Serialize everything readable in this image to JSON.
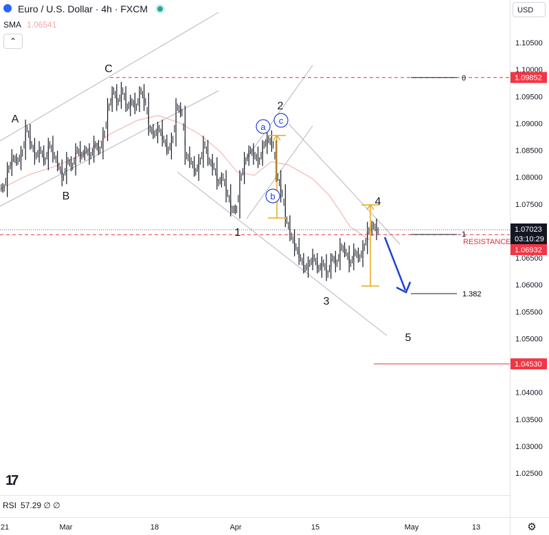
{
  "header": {
    "title": "Euro / U.S. Dollar · 4h · FXCM",
    "currency_button": "USD"
  },
  "indicators": {
    "sma_label": "SMA",
    "sma_value": "1.06541",
    "collapse_icon": "chevron-up-icon",
    "rsi_label": "RSI",
    "rsi_value": "57.29",
    "rsi_icons": "∅ ∅"
  },
  "price_axis": {
    "ticks": [
      "1.10500",
      "1.10000",
      "1.09500",
      "1.09000",
      "1.08500",
      "1.08000",
      "1.07500",
      "1.06500",
      "1.06000",
      "1.05500",
      "1.05000",
      "1.04000",
      "1.03500",
      "1.03000",
      "1.02500"
    ],
    "badges": {
      "level_0": {
        "text": "1.09852",
        "color": "#f23645"
      },
      "current": {
        "text": "1.07023",
        "color": "#131722"
      },
      "countdown": {
        "text": "03:10:29",
        "color": "#131722"
      },
      "resistance_level": {
        "text": "1.06932",
        "color": "#f23645"
      },
      "support_level": {
        "text": "1.04530",
        "color": "#f23645"
      }
    }
  },
  "time_axis": {
    "ticks": [
      "21",
      "Mar",
      "18",
      "Apr",
      "15",
      "May",
      "13"
    ]
  },
  "annotations": {
    "wave_labels": [
      "A",
      "B",
      "C",
      "1",
      "2",
      "3",
      "4",
      "5"
    ],
    "sub_wave_labels": [
      "a",
      "b",
      "c"
    ],
    "fib_labels": {
      "zero": "0",
      "one": "1",
      "ext": "1.382"
    },
    "resistance": "RESISTANCE"
  },
  "colors": {
    "candle": "#131722",
    "sma": "#f5b5b5",
    "channel": "#b2b5be",
    "dashed_red": "#e0303a",
    "fib_gold": "#e8a818",
    "arrow": "#1e3ed8",
    "subwave": "#1f3fd6"
  },
  "chart_data": {
    "type": "candlestick",
    "symbol": "EURUSD",
    "timeframe": "4h",
    "ylim": [
      1.021,
      1.108
    ],
    "x_ticks": [
      "21",
      "Mar",
      "18",
      "Apr",
      "15",
      "May",
      "13"
    ],
    "close_path": [
      1.078,
      1.0815,
      1.0835,
      1.083,
      1.0845,
      1.089,
      1.086,
      1.084,
      1.085,
      1.083,
      1.086,
      1.084,
      1.082,
      1.08,
      1.083,
      1.082,
      1.085,
      1.084,
      1.085,
      1.084,
      1.086,
      1.085,
      1.088,
      1.093,
      1.096,
      1.094,
      1.096,
      1.093,
      1.094,
      1.093,
      1.096,
      1.094,
      1.089,
      1.088,
      1.089,
      1.087,
      1.085,
      1.087,
      1.093,
      1.092,
      1.084,
      1.083,
      1.081,
      1.083,
      1.086,
      1.083,
      1.082,
      1.079,
      1.08,
      1.077,
      1.074,
      1.074,
      1.08,
      1.083,
      1.085,
      1.084,
      1.083,
      1.086,
      1.087,
      1.086,
      1.08,
      1.077,
      1.072,
      1.069,
      1.067,
      1.065,
      1.063,
      1.064,
      1.065,
      1.063,
      1.064,
      1.062,
      1.065,
      1.064,
      1.067,
      1.066,
      1.064,
      1.066,
      1.065,
      1.067,
      1.07,
      1.071,
      1.07
    ],
    "current_price": 1.07023,
    "levels": {
      "fib_0": 1.09852,
      "resistance": 1.06932,
      "fib_1382": 1.0585,
      "target": 1.0453
    },
    "wave_count": [
      "A",
      "B",
      "C",
      "1",
      "2",
      "3",
      "4",
      "5"
    ]
  }
}
